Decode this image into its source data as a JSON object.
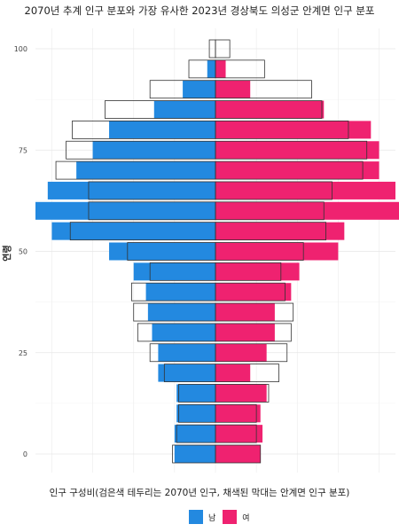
{
  "chart_data": {
    "type": "bar",
    "title": "2070년 추계 인구 분포와 가장 유사한 2023년 경상북도 의성군 안계면 인구 분포",
    "xlabel": "인구 구성비(검은색 테두리는 2070년 인구, 채색된 막대는 안계면 인구 분포)",
    "ylabel": "연령",
    "y_ticks": [
      0,
      25,
      50,
      75,
      100
    ],
    "age_groups": [
      0,
      5,
      10,
      15,
      20,
      25,
      30,
      35,
      40,
      45,
      50,
      55,
      60,
      65,
      70,
      75,
      80,
      85,
      90,
      95,
      100
    ],
    "xlim": [
      -4.4,
      4.4
    ],
    "grid": true,
    "legend_position": "bottom",
    "series": [
      {
        "name": "남",
        "color": "#2389e0",
        "values": [
          1.0,
          1.0,
          0.95,
          0.95,
          1.4,
          1.4,
          1.55,
          1.65,
          1.7,
          2.0,
          2.6,
          4.0,
          4.4,
          4.1,
          3.4,
          3.0,
          2.6,
          1.5,
          0.8,
          0.2,
          0.0
        ],
        "values_2070": [
          1.05,
          0.95,
          0.9,
          0.9,
          1.25,
          1.6,
          1.9,
          2.0,
          2.05,
          1.6,
          2.15,
          3.55,
          3.1,
          3.1,
          3.9,
          3.65,
          3.5,
          2.7,
          1.6,
          0.65,
          0.15
        ]
      },
      {
        "name": "여",
        "color": "#ef2270",
        "values": [
          1.1,
          1.15,
          1.1,
          1.25,
          0.85,
          1.25,
          1.45,
          1.45,
          1.85,
          2.05,
          3.0,
          3.15,
          4.5,
          4.4,
          4.0,
          4.0,
          3.8,
          2.65,
          0.85,
          0.25,
          0.0
        ],
        "values_2070": [
          1.1,
          1.0,
          1.0,
          1.3,
          1.55,
          1.75,
          1.85,
          1.9,
          1.7,
          1.6,
          2.15,
          2.7,
          2.65,
          2.85,
          3.6,
          3.7,
          3.25,
          2.6,
          2.35,
          1.2,
          0.35
        ]
      }
    ]
  }
}
